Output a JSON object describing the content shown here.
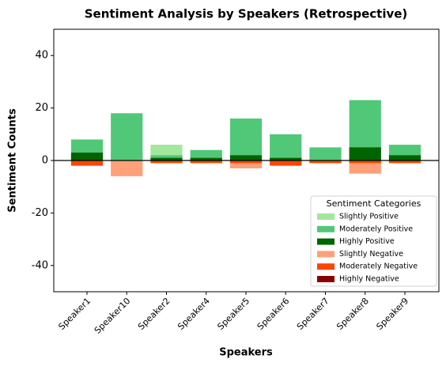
{
  "chart_data": {
    "type": "bar",
    "overlap": true,
    "title": "Sentiment Analysis by Speakers (Retrospective)",
    "x_label": "Speakers",
    "y_label": "Sentiment Counts",
    "categories": [
      "Speaker1",
      "Speaker10",
      "Speaker2",
      "Speaker4",
      "Speaker5",
      "Speaker6",
      "Speaker7",
      "Speaker8",
      "Speaker9"
    ],
    "series": [
      {
        "name": "Slightly Positive",
        "color": "#a3e79c",
        "values": [
          2,
          3,
          6,
          2,
          3,
          2,
          1,
          4,
          2
        ]
      },
      {
        "name": "Moderately Positive",
        "color": "#50c878",
        "values": [
          8,
          18,
          2,
          4,
          16,
          10,
          5,
          23,
          6
        ]
      },
      {
        "name": "Highly Positive",
        "color": "#006400",
        "values": [
          3,
          0,
          1,
          1,
          2,
          1,
          0,
          5,
          2
        ]
      },
      {
        "name": "Slightly Negative",
        "color": "#ffa07a",
        "values": [
          -1,
          -6,
          -1,
          -1,
          -3,
          -1,
          -1,
          -5,
          -1
        ]
      },
      {
        "name": "Moderately Negative",
        "color": "#ff4500",
        "values": [
          -2,
          0,
          -1,
          -1,
          -1,
          -2,
          -1,
          -1,
          -1
        ]
      },
      {
        "name": "Highly Negative",
        "color": "#8b0000",
        "values": [
          0,
          0,
          0,
          0,
          0,
          0,
          0,
          0,
          0
        ]
      }
    ],
    "ylim": [
      -50,
      50
    ],
    "yticks": [
      -40,
      -20,
      0,
      20,
      40
    ],
    "legend_title": "Sentiment Categories",
    "legend_position": "lower right"
  }
}
